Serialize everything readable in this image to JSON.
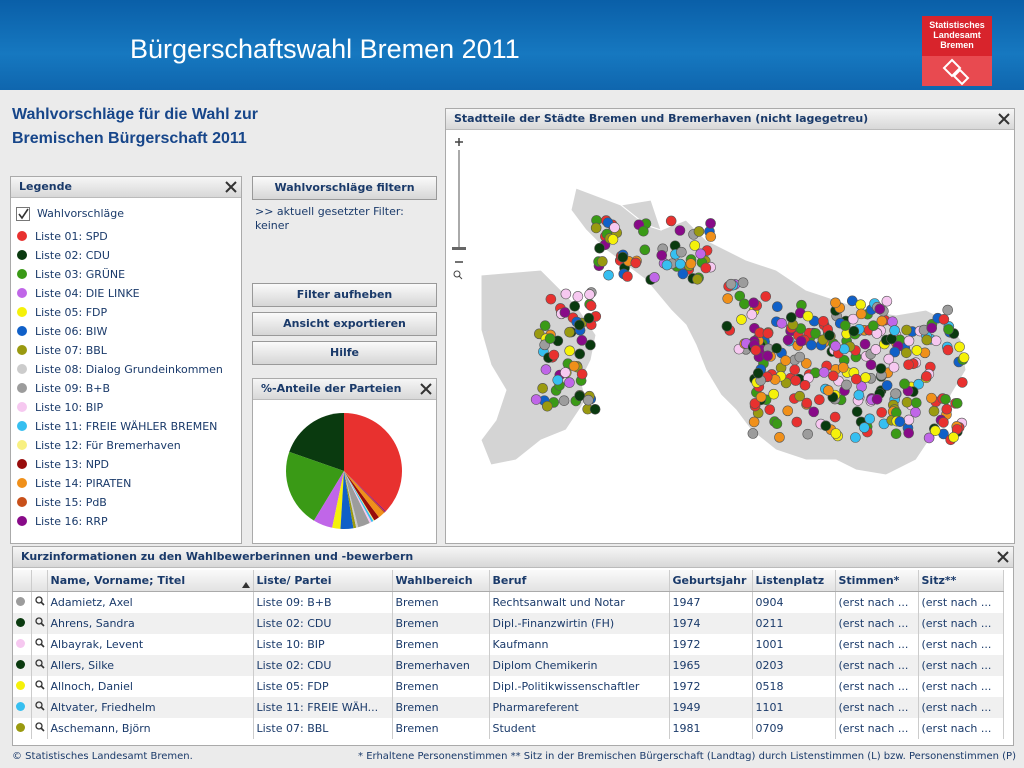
{
  "header": {
    "title": "Bürgerschaftswahl Bremen 2011",
    "logo": [
      "Statistisches",
      "Landesamt",
      "Bremen"
    ]
  },
  "page_title": [
    "Wahlvorschläge für die Wahl zur",
    "Bremischen Bürgerschaft 2011"
  ],
  "legend": {
    "title": "Legende",
    "checkbox_label": "Wahlvorschläge",
    "items": [
      {
        "label": "Liste 01: SPD",
        "color": "#e8312f"
      },
      {
        "label": "Liste 02: CDU",
        "color": "#0a3a0f"
      },
      {
        "label": "Liste 03: GRÜNE",
        "color": "#3a9a16"
      },
      {
        "label": "Liste 04: DIE LINKE",
        "color": "#c066e8"
      },
      {
        "label": "Liste 05: FDP",
        "color": "#f5f10a"
      },
      {
        "label": "Liste 06: BIW",
        "color": "#1060c8"
      },
      {
        "label": "Liste 07: BBL",
        "color": "#9a9a10"
      },
      {
        "label": "Liste 08: Dialog Grundeinkommen",
        "color": "#cccccc"
      },
      {
        "label": "Liste 09: B+B",
        "color": "#9c9c9c"
      },
      {
        "label": "Liste 10: BIP",
        "color": "#f6c8f0"
      },
      {
        "label": "Liste 11: FREIE WÄHLER BREMEN",
        "color": "#36bff0"
      },
      {
        "label": "Liste 12: Für Bremerhaven",
        "color": "#f8f080"
      },
      {
        "label": "Liste 13: NPD",
        "color": "#980c0c"
      },
      {
        "label": "Liste 14: PIRATEN",
        "color": "#f0901a"
      },
      {
        "label": "Liste 15: PdB",
        "color": "#c8501a"
      },
      {
        "label": "Liste 16: RRP",
        "color": "#880a88"
      }
    ]
  },
  "filter": {
    "button": "Wahlvorschläge filtern",
    "status": ">> aktuell gesetzter Filter:",
    "value": "keiner"
  },
  "buttons": [
    "Filter aufheben",
    "Ansicht exportieren",
    "Hilfe"
  ],
  "pie_chart": {
    "type": "pie",
    "title": "%-Anteile der Parteien",
    "values": [
      38.6,
      20.4,
      22.5,
      5.6,
      2.4,
      3.7,
      0.8,
      0.6,
      3.5,
      0.6,
      0.6,
      0.3,
      1.6,
      1.9,
      0.4,
      0.3
    ]
  },
  "map": {
    "title": "Stadtteile der Städte Bremen und Bremerhaven (nicht lagegetreu)"
  },
  "table": {
    "title": "Kurzinformationen zu den Wahlbewerberinnen und -bewerbern",
    "columns": [
      "Name, Vorname; Titel",
      "Liste/ Partei",
      "Wahlbereich",
      "Beruf",
      "Geburtsjahr",
      "Listenplatz",
      "Stimmen*",
      "Sitz**"
    ],
    "rows": [
      {
        "color": "#9c9c9c",
        "cells": [
          "Adamietz, Axel",
          "Liste 09: B+B",
          "Bremen",
          "Rechtsanwalt und Notar",
          "1947",
          "0904",
          "(erst nach ...",
          "(erst nach ..."
        ]
      },
      {
        "color": "#0a3a0f",
        "cells": [
          "Ahrens, Sandra",
          "Liste 02: CDU",
          "Bremen",
          "Dipl.-Finanzwirtin (FH)",
          "1974",
          "0211",
          "(erst nach ...",
          "(erst nach ..."
        ]
      },
      {
        "color": "#f6c8f0",
        "cells": [
          "Albayrak, Levent",
          "Liste 10: BIP",
          "Bremen",
          "Kaufmann",
          "1972",
          "1001",
          "(erst nach ...",
          "(erst nach ..."
        ]
      },
      {
        "color": "#0a3a0f",
        "cells": [
          "Allers, Silke",
          "Liste 02: CDU",
          "Bremerhaven",
          "Diplom Chemikerin",
          "1965",
          "0203",
          "(erst nach ...",
          "(erst nach ..."
        ]
      },
      {
        "color": "#f5f10a",
        "cells": [
          "Allnoch, Daniel",
          "Liste 05: FDP",
          "Bremen",
          "Dipl.-Politikwissenschaftler",
          "1972",
          "0518",
          "(erst nach ...",
          "(erst nach ..."
        ]
      },
      {
        "color": "#36bff0",
        "cells": [
          "Altvater, Friedhelm",
          "Liste 11: FREIE WÄH...",
          "Bremen",
          "Pharmareferent",
          "1949",
          "1101",
          "(erst nach ...",
          "(erst nach ..."
        ]
      },
      {
        "color": "#9a9a10",
        "cells": [
          "Aschemann, Björn",
          "Liste 07: BBL",
          "Bremen",
          "Student",
          "1981",
          "0709",
          "(erst nach ...",
          "(erst nach ..."
        ]
      }
    ]
  },
  "footer": {
    "left": "© Statistisches Landesamt Bremen.",
    "right": "* Erhaltene Personenstimmen ** Sitz in der Bremischen Bürgerschaft (Landtag) durch Listenstimmen (L) bzw. Personenstimmen (P)"
  }
}
